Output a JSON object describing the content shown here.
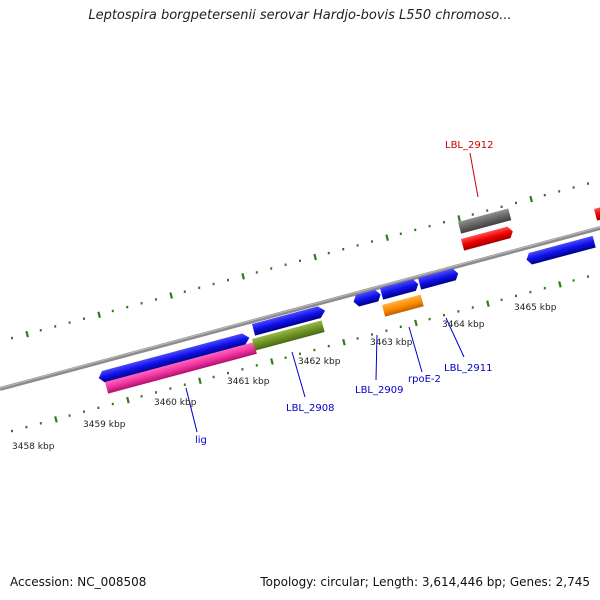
{
  "title": "Leptospira borgpetersenii serovar Hardjo-bovis L550 chromoso...",
  "footer": {
    "accession": "Accession: NC_008508",
    "stats": "Topology: circular; Length: 3,614,446 bp; Genes: 2,745"
  },
  "colors": {
    "backbone": "#8a8a8a",
    "tick": "#2e7d1a",
    "label_blue": "#0000cc",
    "label_red": "#cc0000"
  },
  "scale_labels": [
    "3458 kbp",
    "3459 kbp",
    "3460 kbp",
    "3461 kbp",
    "3462 kbp",
    "3463 kbp",
    "3464 kbp",
    "3465 kbp"
  ],
  "gene_labels": [
    {
      "id": "lig",
      "text": "lig",
      "color": "#0000cc"
    },
    {
      "id": "lbl2908",
      "text": "LBL_2908",
      "color": "#0000cc"
    },
    {
      "id": "lbl2909",
      "text": "LBL_2909",
      "color": "#0000cc"
    },
    {
      "id": "rpoe2",
      "text": "rpoE-2",
      "color": "#0000cc"
    },
    {
      "id": "lbl2911",
      "text": "LBL_2911",
      "color": "#0000cc"
    },
    {
      "id": "lbl2912",
      "text": "LBL_2912",
      "color": "#cc0000"
    }
  ]
}
